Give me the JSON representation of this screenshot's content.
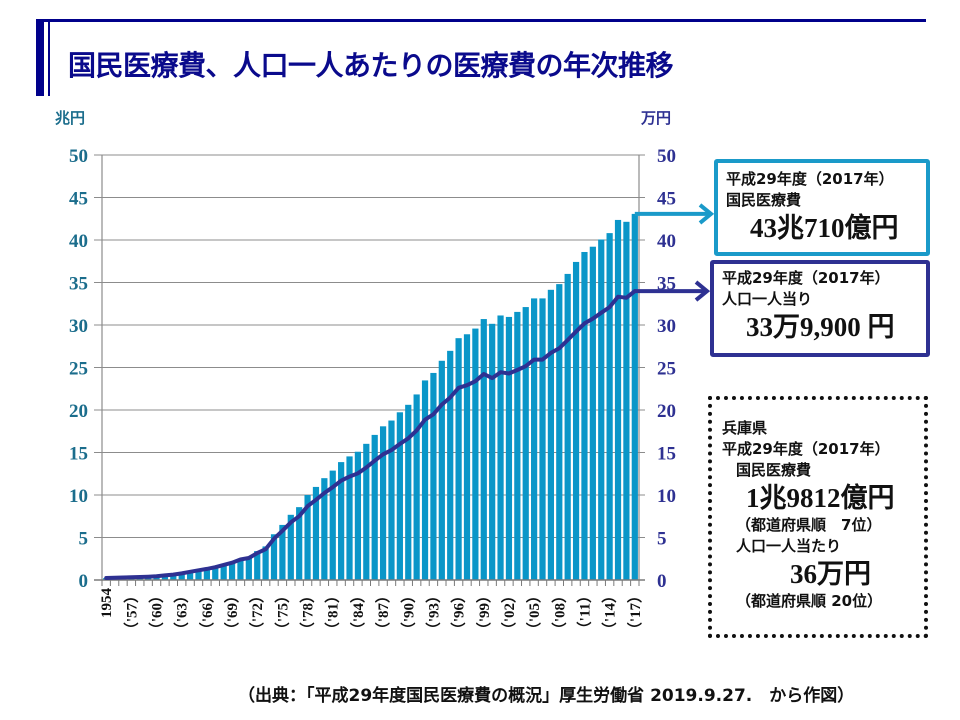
{
  "title": "国民医療費、人口一人あたりの医療費の年次推移",
  "units": {
    "left": "兆円",
    "right": "万円"
  },
  "colors": {
    "frame": "#00008b",
    "title": "#0a0a8c",
    "bar": "#0a96c8",
    "line": "#2e3192",
    "left_axis_text": "#1b6d8c",
    "right_axis_text": "#2e3192",
    "grid": "#8c8c8c",
    "callout_national": "#1a9ac9",
    "callout_per_capita": "#2e3192"
  },
  "chart_data": {
    "type": "bar",
    "title": "国民医療費、人口一人あたりの医療費の年次推移",
    "xlabel": "",
    "ylabel": "兆円",
    "y2label": "万円",
    "ylim": [
      0,
      50
    ],
    "y2lim": [
      0,
      50
    ],
    "grid": true,
    "yticks": [
      0,
      5,
      10,
      15,
      20,
      25,
      30,
      35,
      40,
      45,
      50
    ],
    "y2ticks": [
      0,
      5,
      10,
      15,
      20,
      25,
      30,
      35,
      40,
      45,
      50
    ],
    "x": [
      1954,
      1955,
      1956,
      1957,
      1958,
      1959,
      1960,
      1961,
      1962,
      1963,
      1964,
      1965,
      1966,
      1967,
      1968,
      1969,
      1970,
      1971,
      1972,
      1973,
      1974,
      1975,
      1976,
      1977,
      1978,
      1979,
      1980,
      1981,
      1982,
      1983,
      1984,
      1985,
      1986,
      1987,
      1988,
      1989,
      1990,
      1991,
      1992,
      1993,
      1994,
      1995,
      1996,
      1997,
      1998,
      1999,
      2000,
      2001,
      2002,
      2003,
      2004,
      2005,
      2006,
      2007,
      2008,
      2009,
      2010,
      2011,
      2012,
      2013,
      2014,
      2015,
      2016,
      2017
    ],
    "xtick_years": [
      1954,
      1957,
      1960,
      1963,
      1966,
      1969,
      1972,
      1975,
      1978,
      1981,
      1984,
      1987,
      1990,
      1993,
      1996,
      1999,
      2002,
      2005,
      2008,
      2011,
      2014,
      2017
    ],
    "xtick_labels": [
      "1954",
      "（'57）",
      "（'60）",
      "（'63）",
      "（'66）",
      "（'69）",
      "（'72）",
      "（'75）",
      "（'78）",
      "（'81）",
      "（'84）",
      "（'87）",
      "（'90）",
      "（'93）",
      "（'96）",
      "（'99）",
      "（'02）",
      "（'05）",
      "（'08）",
      "（'11）",
      "（'14）",
      "（'17）"
    ],
    "series": [
      {
        "name": "国民医療費",
        "type": "bar",
        "axis": "left",
        "unit": "兆円",
        "values": [
          0.22,
          0.24,
          0.26,
          0.29,
          0.32,
          0.36,
          0.41,
          0.51,
          0.61,
          0.75,
          0.94,
          1.12,
          1.3,
          1.51,
          1.8,
          2.08,
          2.5,
          2.73,
          3.4,
          3.95,
          5.38,
          6.48,
          7.67,
          8.57,
          10.0,
          10.95,
          11.98,
          12.87,
          13.87,
          14.54,
          15.09,
          16.02,
          17.07,
          18.08,
          18.76,
          19.73,
          20.61,
          21.83,
          23.48,
          24.36,
          25.79,
          26.96,
          28.45,
          28.91,
          29.58,
          30.7,
          30.14,
          31.12,
          30.95,
          31.54,
          32.11,
          33.13,
          33.13,
          34.14,
          34.81,
          36.01,
          37.42,
          38.59,
          39.21,
          40.06,
          40.81,
          42.36,
          42.14,
          43.07
        ]
      },
      {
        "name": "人口一人当たり国民医療費",
        "type": "line",
        "axis": "right",
        "unit": "万円",
        "values": [
          0.24,
          0.27,
          0.29,
          0.32,
          0.35,
          0.39,
          0.44,
          0.54,
          0.64,
          0.78,
          0.97,
          1.14,
          1.31,
          1.51,
          1.78,
          2.03,
          2.41,
          2.59,
          3.16,
          3.62,
          4.86,
          5.79,
          6.78,
          7.51,
          8.69,
          9.43,
          10.23,
          10.92,
          11.68,
          12.17,
          12.55,
          13.23,
          14.03,
          14.79,
          15.28,
          16.01,
          16.67,
          17.59,
          18.86,
          19.5,
          20.63,
          21.47,
          22.61,
          22.92,
          23.39,
          24.23,
          23.75,
          24.45,
          24.29,
          24.71,
          25.15,
          25.93,
          25.93,
          26.72,
          27.26,
          28.24,
          29.22,
          30.19,
          30.75,
          31.44,
          32.11,
          33.33,
          33.2,
          33.99
        ]
      }
    ],
    "legend": "none"
  },
  "callouts": {
    "national": {
      "line1": "平成29年度（2017年）",
      "line2": "国民医療費",
      "value": "43兆710億円"
    },
    "per_capita": {
      "line1": "平成29年度（2017年）",
      "line2": "人口一人当り",
      "value": "33万9,900 円"
    },
    "hyogo": {
      "line1": "兵庫県",
      "line2": "平成29年度（2017年）",
      "line3": "国民医療費",
      "value1": "1兆9812億円",
      "rank1": "（都道府県順　7位）",
      "line4": "人口一人当たり",
      "value2": "36万円",
      "rank2": "（都道府県順  20位）"
    }
  },
  "source": "（出典：「平成29年度国民医療費の概況」厚生労働省  2019.9.27.　から作図）"
}
